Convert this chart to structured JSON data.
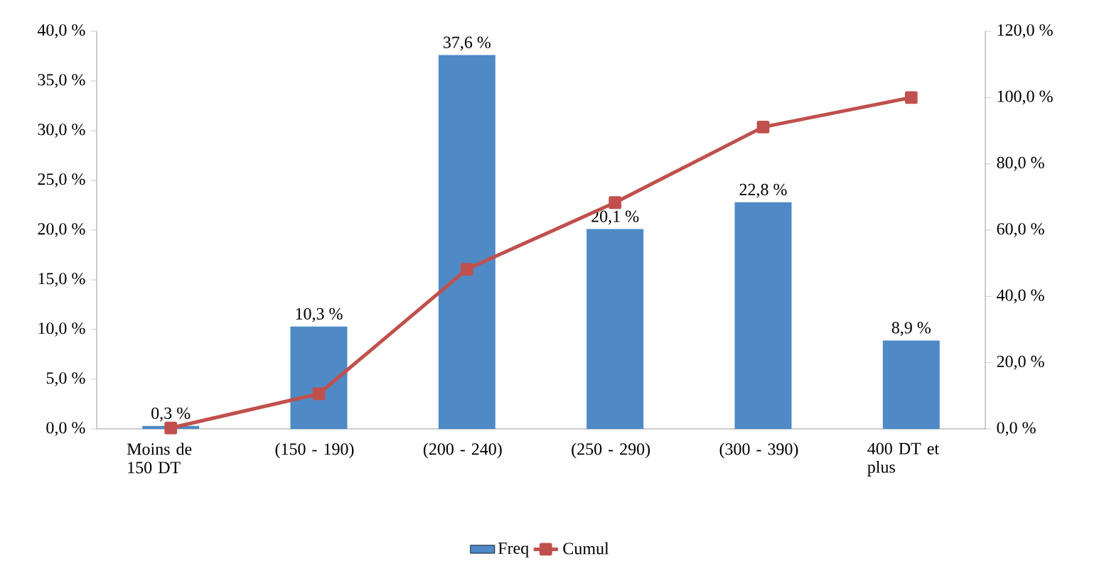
{
  "chart_data": {
    "type": "bar",
    "categories": [
      "Moins de 150 DT",
      "(150 - 190)",
      "(200 - 240)",
      "(250 - 290)",
      "(300 - 390)",
      "400 DT et plus"
    ],
    "series": [
      {
        "name": "Freq",
        "color": "#4f8ac6",
        "values": [
          0.3,
          10.3,
          37.6,
          20.1,
          22.8,
          8.9
        ],
        "value_labels": [
          "0,3 %",
          "10,3 %",
          "37,6 %",
          "20,1 %",
          "22,8 %",
          "8,9 %"
        ]
      },
      {
        "name": "Cumul",
        "type": "line",
        "axis": "y2",
        "color": "#c0504d",
        "marker": "square",
        "values": [
          0.3,
          10.6,
          48.2,
          68.3,
          91.1,
          100.0
        ]
      }
    ],
    "ylim": [
      0,
      40
    ],
    "yticks": [
      {
        "value": 0,
        "label": "0,0 %"
      },
      {
        "value": 5,
        "label": "5,0 %"
      },
      {
        "value": 10,
        "label": "10,0 %"
      },
      {
        "value": 15,
        "label": "15,0 %"
      },
      {
        "value": 20,
        "label": "20,0 %"
      },
      {
        "value": 25,
        "label": "25,0 %"
      },
      {
        "value": 30,
        "label": "30,0 %"
      },
      {
        "value": 35,
        "label": "35,0 %"
      },
      {
        "value": 40,
        "label": "40,0 %"
      }
    ],
    "y2lim": [
      0,
      120
    ],
    "y2ticks": [
      {
        "value": 0,
        "label": "0,0 %"
      },
      {
        "value": 20,
        "label": "20,0 %"
      },
      {
        "value": 40,
        "label": "40,0 %"
      },
      {
        "value": 60,
        "label": "60,0 %"
      },
      {
        "value": 80,
        "label": "80,0 %"
      },
      {
        "value": 100,
        "label": "100,0 %"
      },
      {
        "value": 120,
        "label": "120,0 %"
      }
    ],
    "legend": "bottom",
    "grid": false
  }
}
